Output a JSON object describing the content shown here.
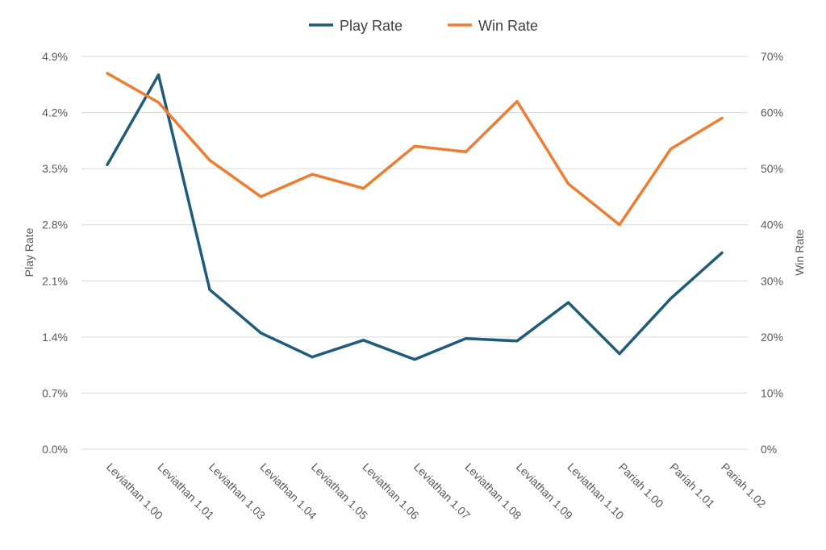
{
  "chart_data": {
    "type": "line",
    "title": "",
    "categories": [
      "Leviathan 1.00",
      "Leviathan 1.01",
      "Leviathan 1.03",
      "Leviathan 1.04",
      "Leviathan 1.05",
      "Leviathan 1.06",
      "Leviathan 1.07",
      "Leviathan 1.08",
      "Leviathan 1.09",
      "Leviathan 1.10",
      "Pariah 1.00",
      "Pariah 1.01",
      "Pariah 1.02"
    ],
    "series": [
      {
        "name": "Play Rate",
        "axis": "left",
        "color": "#1f5c7a",
        "values": [
          3.55,
          4.67,
          1.99,
          1.45,
          1.15,
          1.36,
          1.12,
          1.38,
          1.35,
          1.83,
          1.19,
          1.88,
          2.45
        ]
      },
      {
        "name": "Win Rate",
        "axis": "right",
        "color": "#ed7d31",
        "values": [
          67,
          61.8,
          51.5,
          45,
          49,
          46.5,
          54,
          53,
          62,
          47.3,
          40,
          53.5,
          59
        ]
      }
    ],
    "y_left": {
      "label": "Play Rate",
      "ylim": [
        0,
        4.9
      ],
      "ticks": [
        "0.0%",
        "0.7%",
        "1.4%",
        "2.1%",
        "2.8%",
        "3.5%",
        "4.2%",
        "4.9%"
      ]
    },
    "y_right": {
      "label": "Win Rate",
      "ylim": [
        0,
        70
      ],
      "ticks": [
        "0%",
        "10%",
        "20%",
        "30%",
        "40%",
        "50%",
        "60%",
        "70%"
      ]
    },
    "grid": true,
    "legend_position": "top-center",
    "gridline_color": "#d9d9d9"
  }
}
